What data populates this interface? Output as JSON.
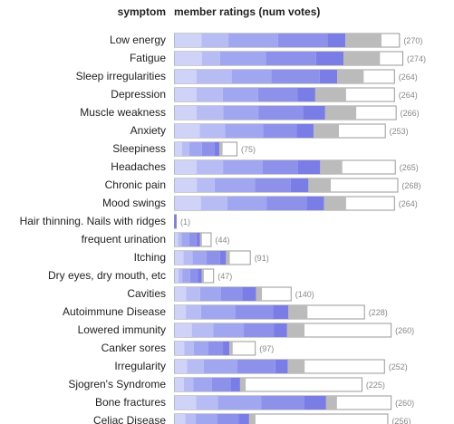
{
  "chart_data": {
    "type": "bar",
    "headers": {
      "symptom": "symptom",
      "ratings": "member ratings (num votes)"
    },
    "rating_scale": {
      "max_votes_shown": 274,
      "segments": 6
    },
    "colors": {
      "segments": [
        "#cfd3f7",
        "#b7bdf4",
        "#a0a6ef",
        "#8d91ea",
        "#7b7de6",
        "#bbbbbb"
      ],
      "bar_border": "#999999",
      "count_text": "#888888"
    },
    "categories": [
      "Low energy",
      "Fatigue",
      "Sleep irregularities",
      "Depression",
      "Muscle weakness",
      "Anxiety",
      "Sleepiness",
      "Headaches",
      "Chronic pain",
      "Mood swings",
      "Hair thinning. Nails with ridges",
      "frequent urination",
      "Itching",
      "Dry eyes, dry mouth, etc",
      "Cavities",
      "Autoimmune Disease",
      "Lowered immunity",
      "Canker sores",
      "Irregularity",
      "Sjogren's Syndrome",
      "Bone fractures",
      "Celiac Disease"
    ],
    "votes": [
      270,
      274,
      264,
      264,
      266,
      253,
      75,
      265,
      268,
      264,
      1,
      44,
      91,
      47,
      140,
      228,
      260,
      97,
      252,
      225,
      260,
      256
    ],
    "vote_labels": [
      "(270)",
      "(274)",
      "(264)",
      "(264)",
      "(266)",
      "(253)",
      "(75)",
      "(265)",
      "(268)",
      "(264)",
      "(1)",
      "(44)",
      "(91)",
      "(47)",
      "(140)",
      "(228)",
      "(260)",
      "(97)",
      "(252)",
      "(225)",
      "(260)",
      "(256)"
    ],
    "series": [
      {
        "values": [
          12,
          12,
          10,
          10,
          10,
          12,
          12,
          10,
          10,
          12,
          0,
          10,
          12,
          10,
          10,
          6,
          8,
          12,
          6,
          5,
          10,
          5
        ]
      },
      {
        "values": [
          12,
          8,
          16,
          12,
          12,
          12,
          12,
          12,
          8,
          12,
          0,
          10,
          12,
          10,
          12,
          8,
          10,
          12,
          8,
          5,
          10,
          5
        ]
      },
      {
        "values": [
          22,
          20,
          18,
          16,
          16,
          18,
          20,
          18,
          18,
          18,
          0,
          20,
          18,
          20,
          18,
          18,
          14,
          18,
          16,
          10,
          20,
          10
        ]
      },
      {
        "values": [
          22,
          22,
          22,
          18,
          20,
          16,
          20,
          16,
          16,
          18,
          0,
          20,
          18,
          20,
          18,
          20,
          14,
          18,
          18,
          10,
          20,
          10
        ]
      },
      {
        "values": [
          8,
          12,
          8,
          8,
          10,
          8,
          8,
          10,
          8,
          8,
          100,
          10,
          8,
          10,
          12,
          8,
          6,
          8,
          6,
          5,
          10,
          5
        ]
      },
      {
        "values": [
          16,
          16,
          12,
          14,
          14,
          12,
          5,
          10,
          10,
          10,
          0,
          5,
          5,
          5,
          5,
          10,
          8,
          4,
          8,
          3,
          5,
          3
        ]
      }
    ]
  }
}
